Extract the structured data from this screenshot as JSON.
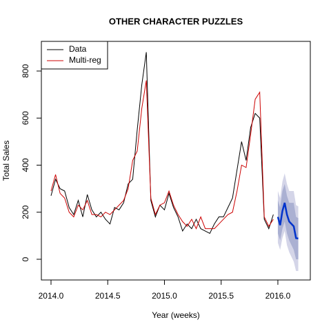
{
  "chart_data": {
    "type": "line",
    "title": "OTHER CHARACTER PUZZLES",
    "x_label": "Year (weeks)",
    "y_label": "Total Sales",
    "x": [
      2014.0,
      2014.04,
      2014.08,
      2014.12,
      2014.16,
      2014.2,
      2014.24,
      2014.28,
      2014.32,
      2014.36,
      2014.4,
      2014.44,
      2014.48,
      2014.52,
      2014.56,
      2014.6,
      2014.64,
      2014.68,
      2014.72,
      2014.76,
      2014.8,
      2014.84,
      2014.88,
      2014.92,
      2014.96,
      2015.0,
      2015.04,
      2015.08,
      2015.12,
      2015.16,
      2015.2,
      2015.24,
      2015.28,
      2015.32,
      2015.36,
      2015.4,
      2015.44,
      2015.48,
      2015.52,
      2015.56,
      2015.6,
      2015.64,
      2015.68,
      2015.72,
      2015.76,
      2015.8,
      2015.84,
      2015.88,
      2015.92,
      2015.96
    ],
    "series": [
      {
        "name": "Data",
        "color": "#000000",
        "values": [
          270,
          340,
          300,
          290,
          220,
          190,
          250,
          180,
          275,
          210,
          180,
          200,
          170,
          150,
          220,
          210,
          240,
          320,
          340,
          550,
          740,
          880,
          250,
          180,
          230,
          210,
          280,
          220,
          180,
          120,
          150,
          130,
          170,
          130,
          120,
          110,
          150,
          180,
          180,
          220,
          260,
          380,
          500,
          420,
          560,
          620,
          600,
          170,
          130,
          190
        ]
      },
      {
        "name": "Multi-reg",
        "color": "#cc0000",
        "values": [
          290,
          360,
          280,
          260,
          200,
          180,
          230,
          210,
          250,
          190,
          190,
          180,
          200,
          190,
          210,
          230,
          250,
          300,
          420,
          460,
          640,
          760,
          260,
          190,
          230,
          240,
          290,
          230,
          190,
          160,
          140,
          170,
          130,
          180,
          130,
          130,
          130,
          150,
          170,
          190,
          200,
          290,
          400,
          390,
          530,
          680,
          710,
          180,
          140,
          170
        ]
      }
    ],
    "forecast": {
      "color": "#0033cc",
      "color_80": "#aab0d2",
      "color_95": "#d4d5e8",
      "x": [
        2016.0,
        2016.02,
        2016.04,
        2016.06,
        2016.08,
        2016.1,
        2016.12,
        2016.14,
        2016.16,
        2016.18
      ],
      "values": [
        180,
        145,
        205,
        240,
        190,
        160,
        150,
        140,
        90,
        88
      ],
      "lower_80": [
        110,
        80,
        130,
        160,
        110,
        80,
        60,
        40,
        0,
        0
      ],
      "upper_80": [
        250,
        220,
        290,
        320,
        270,
        240,
        240,
        240,
        180,
        175
      ],
      "lower_95": [
        70,
        40,
        90,
        120,
        60,
        30,
        10,
        -10,
        -50,
        -50
      ],
      "upper_95": [
        290,
        260,
        330,
        365,
        320,
        290,
        290,
        290,
        230,
        225
      ]
    },
    "xlim": [
      2013.915,
      2016.286
    ],
    "ylim": [
      -88,
      926
    ],
    "xticks": [
      {
        "value": 2014.0,
        "label": "2014.0"
      },
      {
        "value": 2014.5,
        "label": "2014.5"
      },
      {
        "value": 2015.0,
        "label": "2015.0"
      },
      {
        "value": 2015.5,
        "label": "2015.5"
      },
      {
        "value": 2016.0,
        "label": "2016.0"
      }
    ],
    "yticks": [
      0,
      200,
      400,
      600,
      800
    ],
    "grid": false,
    "legend": "top-left"
  }
}
